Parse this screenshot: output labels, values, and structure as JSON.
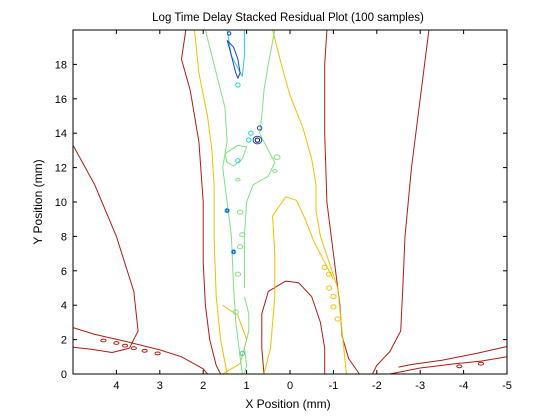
{
  "chart_data": {
    "type": "contour",
    "title": "Log Time Delay Stacked Residual Plot (100 samples)",
    "xlabel": "X Position (mm)",
    "ylabel": "Y Position (mm)",
    "xlim": [
      5,
      -5
    ],
    "ylim": [
      0,
      20
    ],
    "x_reversed": true,
    "xticks": [
      4,
      3,
      2,
      1,
      0,
      -1,
      -2,
      -3,
      -4,
      -5
    ],
    "yticks": [
      0,
      2,
      4,
      6,
      8,
      10,
      12,
      14,
      16,
      18
    ],
    "grid": false,
    "legend": "none",
    "levels": [
      {
        "color": "#b01c10",
        "paths": [
          [
            [
              5.0,
              13.3
            ],
            [
              4.5,
              11.0
            ],
            [
              4.0,
              8.0
            ],
            [
              3.6,
              4.8
            ],
            [
              3.5,
              2.5
            ],
            [
              3.7,
              1.5
            ],
            [
              4.1,
              1.25
            ],
            [
              4.6,
              1.45
            ],
            [
              5.0,
              1.55
            ]
          ],
          [
            [
              5.0,
              2.7
            ],
            [
              4.5,
              2.3
            ],
            [
              3.8,
              1.9
            ],
            [
              3.0,
              1.4
            ],
            [
              2.5,
              1.0
            ],
            [
              2.0,
              0.3
            ],
            [
              1.9,
              0.0
            ]
          ],
          [
            [
              2.4,
              20.0
            ],
            [
              2.5,
              18.3
            ],
            [
              2.3,
              16.5
            ],
            [
              2.1,
              13.5
            ],
            [
              2.0,
              10.0
            ],
            [
              2.0,
              6.5
            ],
            [
              1.95,
              4.0
            ],
            [
              1.85,
              2.0
            ],
            [
              1.7,
              0.5
            ],
            [
              1.6,
              0.0
            ]
          ],
          [
            [
              0.6,
              0.0
            ],
            [
              0.65,
              1.5
            ],
            [
              0.65,
              3.5
            ],
            [
              0.5,
              4.8
            ],
            [
              0.1,
              5.4
            ],
            [
              -0.2,
              5.3
            ],
            [
              -0.5,
              4.5
            ],
            [
              -0.7,
              3.0
            ],
            [
              -0.8,
              1.5
            ],
            [
              -0.8,
              0.0
            ]
          ],
          [
            [
              -0.85,
              20.0
            ],
            [
              -0.8,
              18.0
            ],
            [
              -0.8,
              14.0
            ],
            [
              -0.85,
              10.0
            ],
            [
              -1.0,
              7.0
            ],
            [
              -1.15,
              4.0
            ],
            [
              -1.2,
              2.2
            ],
            [
              -1.35,
              0.9
            ],
            [
              -1.6,
              0.0
            ]
          ],
          [
            [
              -3.2,
              20.0
            ],
            [
              -3.0,
              16.0
            ],
            [
              -2.8,
              12.0
            ],
            [
              -2.65,
              8.0
            ],
            [
              -2.6,
              5.0
            ],
            [
              -2.55,
              2.5
            ],
            [
              -2.3,
              1.3
            ],
            [
              -2.0,
              0.5
            ],
            [
              -1.9,
              0.0
            ]
          ],
          [
            [
              -2.3,
              0.0
            ],
            [
              -3.0,
              0.35
            ],
            [
              -3.8,
              0.6
            ],
            [
              -4.4,
              0.75
            ],
            [
              -5.0,
              1.0
            ]
          ],
          [
            [
              -5.0,
              1.6
            ],
            [
              -4.3,
              1.2
            ],
            [
              -3.5,
              0.8
            ],
            [
              -2.8,
              0.55
            ],
            [
              -2.5,
              0.4
            ]
          ]
        ],
        "marks": [
          [
            4.3,
            1.95,
            0.06,
            0.08
          ],
          [
            4.0,
            1.8,
            0.06,
            0.08
          ],
          [
            3.8,
            1.65,
            0.06,
            0.08
          ],
          [
            3.6,
            1.5,
            0.06,
            0.08
          ],
          [
            3.35,
            1.35,
            0.06,
            0.08
          ],
          [
            3.05,
            1.2,
            0.06,
            0.08
          ],
          [
            -3.9,
            0.45,
            0.06,
            0.08
          ],
          [
            -4.4,
            0.6,
            0.06,
            0.08
          ]
        ]
      },
      {
        "color": "#f0c000",
        "paths": [
          [
            [
              2.2,
              20.0
            ],
            [
              2.1,
              17.5
            ],
            [
              1.9,
              15.0
            ],
            [
              1.8,
              13.0
            ],
            [
              1.75,
              11.0
            ],
            [
              1.75,
              8.0
            ],
            [
              1.7,
              4.5
            ],
            [
              1.6,
              2.0
            ],
            [
              1.45,
              0.0
            ]
          ],
          [
            [
              0.4,
              20.0
            ],
            [
              0.2,
              18.0
            ],
            [
              0.0,
              16.2
            ],
            [
              -0.3,
              14.3
            ],
            [
              -0.5,
              12.5
            ],
            [
              -0.6,
              11.0
            ],
            [
              -0.6,
              9.5
            ],
            [
              -0.7,
              8.0
            ],
            [
              -0.9,
              6.5
            ],
            [
              -1.1,
              5.0
            ],
            [
              -1.3,
              0.0
            ]
          ],
          [
            [
              0.6,
              0.0
            ],
            [
              0.45,
              1.5
            ],
            [
              0.35,
              4.5
            ],
            [
              0.35,
              7.0
            ],
            [
              0.4,
              9.2
            ],
            [
              0.1,
              10.3
            ],
            [
              -0.15,
              10.1
            ],
            [
              -0.35,
              9.0
            ],
            [
              -0.55,
              7.7
            ],
            [
              -0.8,
              6.5
            ],
            [
              -1.0,
              5.5
            ]
          ],
          [
            [
              1.55,
              4.0
            ],
            [
              1.2,
              3.4
            ],
            [
              1.0,
              2.0
            ],
            [
              1.15,
              0.6
            ],
            [
              1.55,
              0.0
            ]
          ]
        ],
        "marks": [
          [
            -0.8,
            6.2,
            0.06,
            0.12
          ],
          [
            -0.9,
            5.8,
            0.06,
            0.12
          ],
          [
            -0.9,
            5.0,
            0.06,
            0.12
          ],
          [
            -1.0,
            4.5,
            0.06,
            0.12
          ],
          [
            -1.0,
            3.9,
            0.06,
            0.12
          ],
          [
            -1.1,
            3.2,
            0.06,
            0.12
          ]
        ]
      },
      {
        "color": "#80e080",
        "paths": [
          [
            [
              1.95,
              20.0
            ],
            [
              1.7,
              17.5
            ],
            [
              1.5,
              15.5
            ],
            [
              1.45,
              13.5
            ],
            [
              1.55,
              12.0
            ],
            [
              1.45,
              10.0
            ],
            [
              1.35,
              8.0
            ],
            [
              1.3,
              5.0
            ],
            [
              1.25,
              3.0
            ],
            [
              1.15,
              1.0
            ],
            [
              1.1,
              0.0
            ]
          ],
          [
            [
              0.35,
              20.0
            ],
            [
              0.5,
              18.0
            ],
            [
              0.6,
              16.5
            ],
            [
              0.65,
              15.0
            ],
            [
              0.7,
              14.0
            ],
            [
              0.5,
              13.0
            ],
            [
              0.35,
              12.3
            ],
            [
              0.5,
              11.5
            ],
            [
              0.85,
              11.0
            ],
            [
              1.0,
              10.0
            ],
            [
              1.05,
              8.0
            ],
            [
              1.05,
              6.5
            ],
            [
              1.05,
              5.0
            ]
          ],
          [
            [
              1.5,
              12.8
            ],
            [
              1.2,
              13.3
            ],
            [
              1.0,
              13.2
            ],
            [
              1.1,
              12.5
            ],
            [
              1.3,
              12.1
            ],
            [
              1.45,
              12.3
            ],
            [
              1.5,
              12.8
            ]
          ],
          [
            [
              1.05,
              4.5
            ],
            [
              0.95,
              3.5
            ],
            [
              0.95,
              2.5
            ],
            [
              1.05,
              1.5
            ],
            [
              1.0,
              0.5
            ],
            [
              1.05,
              0.0
            ]
          ]
        ],
        "marks": [
          [
            1.15,
            9.4,
            0.06,
            0.12
          ],
          [
            1.1,
            8.1,
            0.06,
            0.12
          ],
          [
            1.15,
            7.4,
            0.06,
            0.12
          ],
          [
            1.2,
            5.8,
            0.06,
            0.12
          ],
          [
            1.25,
            3.6,
            0.06,
            0.12
          ],
          [
            0.3,
            12.6,
            0.07,
            0.14
          ],
          [
            0.35,
            11.8,
            0.05,
            0.08
          ],
          [
            1.2,
            11.3,
            0.05,
            0.08
          ]
        ]
      },
      {
        "color": "#20d0d8",
        "paths": [
          [
            [
              1.45,
              20.0
            ],
            [
              1.35,
              18.5
            ],
            [
              1.1,
              17.3
            ],
            [
              1.05,
              18.5
            ],
            [
              1.05,
              20.0
            ]
          ]
        ],
        "marks": [
          [
            1.2,
            16.8,
            0.05,
            0.12
          ],
          [
            0.9,
            14.0,
            0.05,
            0.12
          ],
          [
            0.95,
            13.6,
            0.05,
            0.12
          ],
          [
            1.2,
            12.4,
            0.05,
            0.12
          ],
          [
            1.45,
            9.5,
            0.05,
            0.12
          ],
          [
            1.3,
            7.1,
            0.05,
            0.12
          ],
          [
            1.1,
            1.2,
            0.05,
            0.12
          ]
        ]
      },
      {
        "color": "#2040c0",
        "paths": [
          [
            [
              1.45,
              19.4
            ],
            [
              1.4,
              19.0
            ],
            [
              1.35,
              18.5
            ],
            [
              1.3,
              18.0
            ],
            [
              1.25,
              17.5
            ],
            [
              1.2,
              17.2
            ],
            [
              1.15,
              17.5
            ],
            [
              1.2,
              18.3
            ],
            [
              1.3,
              19.0
            ],
            [
              1.45,
              19.4
            ]
          ]
        ],
        "marks": [
          [
            1.4,
            19.8,
            0.04,
            0.1
          ],
          [
            0.75,
            13.6,
            0.1,
            0.22
          ],
          [
            0.7,
            14.3,
            0.05,
            0.12
          ],
          [
            1.3,
            7.1,
            0.03,
            0.08
          ],
          [
            1.45,
            9.5,
            0.03,
            0.08
          ]
        ]
      },
      {
        "color": "#101018",
        "paths": [],
        "marks": [
          [
            0.75,
            13.6,
            0.05,
            0.12
          ]
        ]
      }
    ]
  }
}
